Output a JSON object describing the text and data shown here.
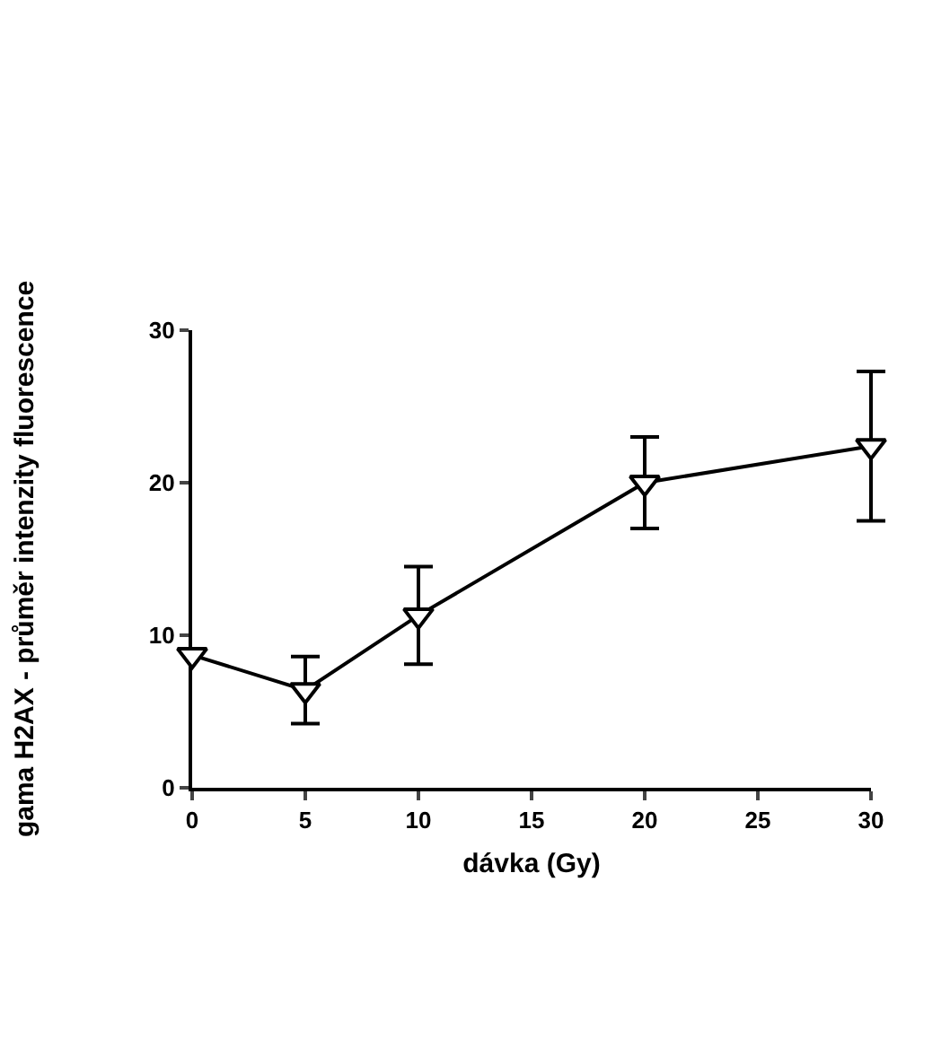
{
  "chart_data": {
    "type": "line",
    "xlabel": "dávka (Gy)",
    "ylabel": "gama H2AX - průměr intenzity fluorescence",
    "x": [
      0,
      5,
      10,
      20,
      30
    ],
    "series": [
      {
        "color": "#000000",
        "values": [
          8.7,
          6.4,
          11.3,
          20.0,
          22.4
        ],
        "errors": [
          null,
          2.2,
          3.2,
          3.0,
          4.9
        ]
      }
    ],
    "xlim": [
      0,
      30
    ],
    "xticks": [
      0,
      5,
      10,
      15,
      20,
      25,
      30
    ],
    "ylim": [
      0,
      30
    ],
    "yticks": [
      0,
      10,
      20,
      30
    ],
    "grid": false,
    "legend": false,
    "marker": "triangle",
    "line_style": "solid"
  }
}
